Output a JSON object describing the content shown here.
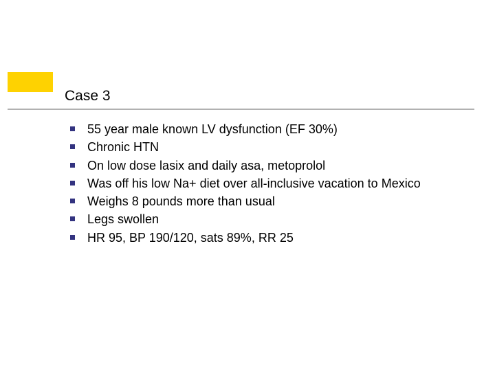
{
  "slide": {
    "title": "Case 3",
    "accent_color": "#fed201",
    "underline_color": "#b1b1b1",
    "title_color": "#000000",
    "title_fontsize": 21,
    "body_fontsize": 18,
    "body_color": "#000000",
    "bullet_marker_color": "#333380",
    "bullet_marker_size": 7,
    "background_color": "#ffffff",
    "bullets": [
      "55 year male known LV dysfunction (EF 30%)",
      "Chronic HTN",
      "On low dose lasix and daily asa, metoprolol",
      "Was off his low Na+ diet over all-inclusive vacation to Mexico",
      "Weighs 8 pounds more than usual",
      "Legs swollen",
      "HR 95, BP 190/120, sats 89%, RR 25"
    ]
  }
}
